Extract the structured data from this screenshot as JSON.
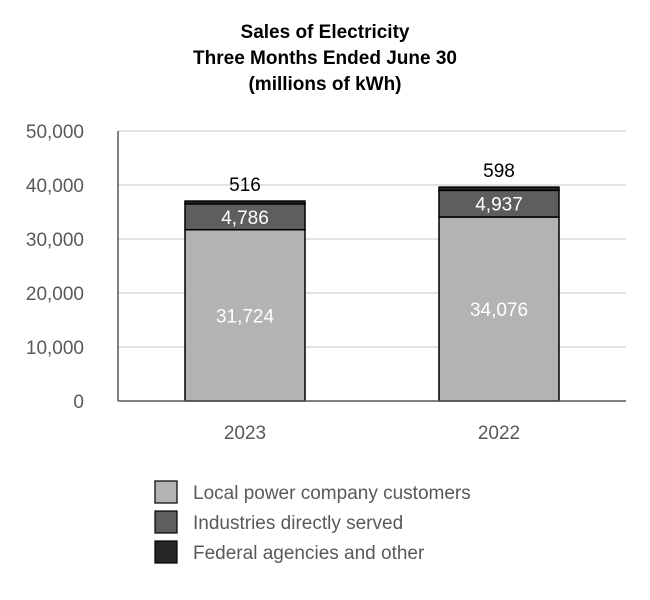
{
  "chart_data": {
    "type": "bar",
    "stacked": true,
    "title": [
      "Sales of Electricity",
      "Three Months Ended June 30",
      "(millions of kWh)"
    ],
    "categories": [
      "2023",
      "2022"
    ],
    "series": [
      {
        "name": "Local power company customers",
        "values": [
          31724,
          34076
        ],
        "color": "#b3b3b3",
        "label_color": "#ffffff"
      },
      {
        "name": "Industries directly served",
        "values": [
          4786,
          4937
        ],
        "color": "#5e5e5e",
        "label_color": "#ffffff"
      },
      {
        "name": "Federal agencies and other",
        "values": [
          516,
          598
        ],
        "color": "#262626",
        "label_color": "#000000"
      }
    ],
    "data_labels": [
      [
        "31,724",
        "34,076"
      ],
      [
        "4,786",
        "4,937"
      ],
      [
        "516",
        "598"
      ]
    ],
    "ylim": [
      0,
      50000
    ],
    "yticks": [
      0,
      10000,
      20000,
      30000,
      40000,
      50000
    ],
    "ytick_labels": [
      "0",
      "10,000",
      "20,000",
      "30,000",
      "40,000",
      "50,000"
    ],
    "xlabel": "",
    "ylabel": "",
    "grid": true,
    "legend_position": "bottom"
  }
}
